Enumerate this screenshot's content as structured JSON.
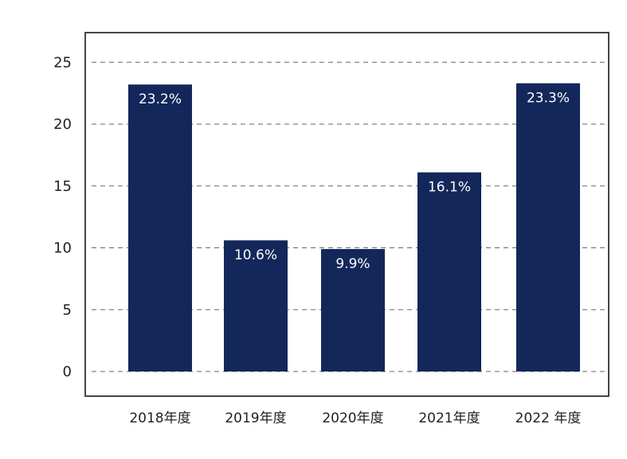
{
  "chart_data": {
    "type": "bar",
    "categories": [
      "2018年度",
      "2019年度",
      "2020年度",
      "2021年度",
      "2022 年度"
    ],
    "values": [
      23.2,
      10.6,
      9.9,
      16.1,
      23.3
    ],
    "data_labels": [
      "23.2%",
      "10.6%",
      "9.9%",
      "16.1%",
      "23.3%"
    ],
    "yticks": [
      0,
      5,
      10,
      15,
      20,
      25
    ],
    "ylim": [
      -2,
      28
    ],
    "grid": true,
    "legend": "none",
    "bar_color": "#13275a",
    "grid_color": "#666666",
    "frame_color": "#444444"
  }
}
